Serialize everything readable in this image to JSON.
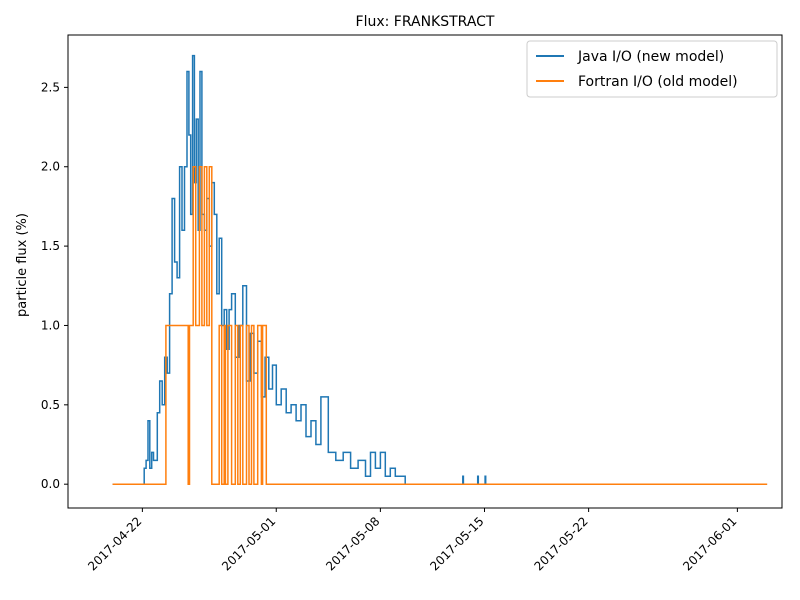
{
  "chart_data": {
    "type": "line",
    "title": "Flux: FRANKSTRACT",
    "xlabel": "",
    "ylabel": "particle flux (%)",
    "xlim": [
      "2017-04-17",
      "2017-06-04"
    ],
    "ylim": [
      -0.15,
      2.83
    ],
    "xticks": [
      "2017-04-22",
      "2017-05-01",
      "2017-05-08",
      "2017-05-15",
      "2017-05-22",
      "2017-06-01"
    ],
    "yticks": [
      0.0,
      0.5,
      1.0,
      1.5,
      2.0,
      2.5
    ],
    "ytick_labels": [
      "0.0",
      "0.5",
      "1.0",
      "1.5",
      "2.0",
      "2.5"
    ],
    "grid": false,
    "legend_position": "top-right",
    "series": [
      {
        "name": "Java I/O (new model)",
        "color": "#1f77b4",
        "x": [
          "2017-04-20",
          "2017-04-22",
          "2017-04-22T03",
          "2017-04-22T06",
          "2017-04-22T09",
          "2017-04-22T12",
          "2017-04-22T15",
          "2017-04-22T18",
          "2017-04-23",
          "2017-04-23T04",
          "2017-04-23T08",
          "2017-04-23T12",
          "2017-04-23T16",
          "2017-04-23T20",
          "2017-04-24",
          "2017-04-24T04",
          "2017-04-24T08",
          "2017-04-24T12",
          "2017-04-24T16",
          "2017-04-24T20",
          "2017-04-25",
          "2017-04-25T03",
          "2017-04-25T06",
          "2017-04-25T09",
          "2017-04-25T12",
          "2017-04-25T15",
          "2017-04-25T18",
          "2017-04-25T21",
          "2017-04-26",
          "2017-04-26T04",
          "2017-04-26T08",
          "2017-04-26T12",
          "2017-04-26T16",
          "2017-04-26T20",
          "2017-04-27",
          "2017-04-27T04",
          "2017-04-27T08",
          "2017-04-27T12",
          "2017-04-27T16",
          "2017-04-27T20",
          "2017-04-28",
          "2017-04-28T06",
          "2017-04-28T12",
          "2017-04-28T18",
          "2017-04-29",
          "2017-04-29T06",
          "2017-04-29T12",
          "2017-04-29T18",
          "2017-04-30",
          "2017-04-30T06",
          "2017-04-30T12",
          "2017-04-30T18",
          "2017-05-01",
          "2017-05-01T08",
          "2017-05-01T16",
          "2017-05-02",
          "2017-05-02T08",
          "2017-05-02T16",
          "2017-05-03",
          "2017-05-03T08",
          "2017-05-03T16",
          "2017-05-04",
          "2017-05-04T12",
          "2017-05-05",
          "2017-05-05T12",
          "2017-05-06",
          "2017-05-06T12",
          "2017-05-07",
          "2017-05-07T08",
          "2017-05-07T16",
          "2017-05-08",
          "2017-05-08T08",
          "2017-05-08T16",
          "2017-05-09",
          "2017-05-09T08",
          "2017-05-09T16",
          "2017-05-10",
          "2017-05-10T12",
          "2017-05-11",
          "2017-05-11T12",
          "2017-05-12",
          "2017-05-12T12",
          "2017-05-13",
          "2017-05-13T12",
          "2017-05-13T13",
          "2017-05-13T14",
          "2017-05-14",
          "2017-05-14T12",
          "2017-05-14T13",
          "2017-05-14T14",
          "2017-05-15",
          "2017-05-15T01",
          "2017-05-15T02",
          "2017-05-15T04",
          "2017-05-20",
          "2017-05-25",
          "2017-05-30",
          "2017-06-03"
        ],
        "values": [
          0.0,
          0.0,
          0.1,
          0.15,
          0.4,
          0.1,
          0.2,
          0.15,
          0.45,
          0.65,
          0.5,
          0.8,
          0.7,
          1.2,
          1.8,
          1.4,
          1.3,
          2.0,
          1.6,
          2.0,
          2.6,
          2.2,
          1.7,
          2.7,
          1.9,
          2.3,
          1.6,
          2.6,
          1.7,
          1.6,
          1.8,
          1.5,
          1.9,
          1.7,
          1.2,
          1.55,
          1.0,
          1.1,
          0.85,
          1.1,
          1.2,
          0.8,
          1.0,
          1.25,
          0.65,
          0.95,
          0.7,
          0.9,
          0.55,
          0.8,
          0.6,
          0.75,
          0.5,
          0.6,
          0.45,
          0.5,
          0.4,
          0.5,
          0.3,
          0.4,
          0.25,
          0.55,
          0.2,
          0.15,
          0.2,
          0.1,
          0.15,
          0.05,
          0.2,
          0.1,
          0.2,
          0.05,
          0.1,
          0.05,
          0.05,
          0.0,
          0.0,
          0.0,
          0.0,
          0.0,
          0.0,
          0.0,
          0.0,
          0.0,
          0.05,
          0.0,
          0.0,
          0.0,
          0.05,
          0.0,
          0.0,
          0.05,
          0.0,
          0.0,
          0.0,
          0.0,
          0.0,
          0.0
        ]
      },
      {
        "name": "Fortran I/O (old model)",
        "color": "#ff7f0e",
        "x": [
          "2017-04-20",
          "2017-04-23T12",
          "2017-04-23T14",
          "2017-04-25",
          "2017-04-25T02",
          "2017-04-25T04",
          "2017-04-25T10",
          "2017-04-25T14",
          "2017-04-25T20",
          "2017-04-26",
          "2017-04-26T04",
          "2017-04-26T08",
          "2017-04-26T12",
          "2017-04-26T16",
          "2017-04-27",
          "2017-04-27T04",
          "2017-04-27T08",
          "2017-04-27T12",
          "2017-04-27T14",
          "2017-04-27T18",
          "2017-04-28",
          "2017-04-28T06",
          "2017-04-28T10",
          "2017-04-28T14",
          "2017-04-28T18",
          "2017-04-29",
          "2017-04-29T04",
          "2017-04-29T08",
          "2017-04-29T12",
          "2017-04-29T18",
          "2017-04-30",
          "2017-04-30T02",
          "2017-04-30T04",
          "2017-04-30T08",
          "2017-06-03"
        ],
        "values": [
          0.0,
          0.0,
          1.0,
          1.0,
          0.0,
          1.0,
          2.0,
          1.0,
          2.0,
          1.0,
          2.0,
          1.0,
          2.0,
          0.0,
          0.0,
          1.0,
          0.0,
          1.0,
          0.0,
          1.0,
          0.0,
          1.0,
          0.0,
          1.0,
          0.0,
          1.0,
          0.0,
          1.0,
          0.0,
          1.0,
          0.0,
          1.0,
          1.0,
          0.0,
          0.0
        ]
      }
    ]
  }
}
